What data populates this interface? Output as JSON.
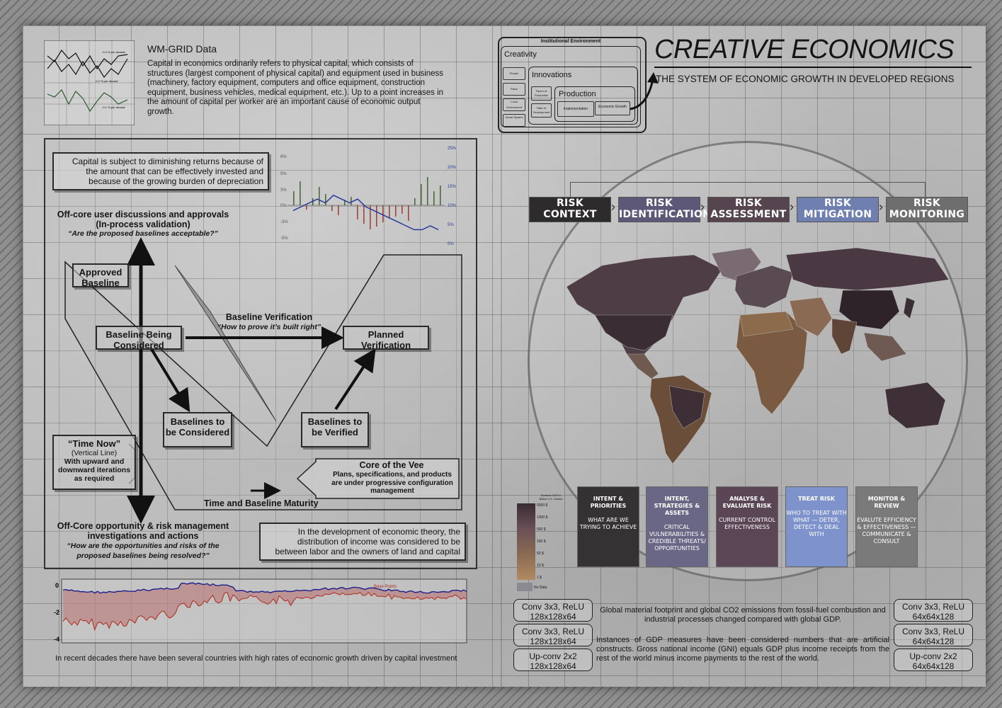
{
  "left": {
    "header": {
      "title": "WM-GRID Data",
      "body": "Capital in economics ordinarily refers to physical capital, which consists of structures (largest component of physical capital) and equipment used in business (machinery, factory equipment, computers and office equipment, construction equipment, business vehicles, medical equipment, etc.). Up to a point increases in the amount of capital per worker are an important cause of economic output growth.",
      "mini_chart_labels": [
        "-0.4 % per decade",
        "-0.2 % per decade",
        "-0.1 % per decade"
      ]
    },
    "diminishing_note": "Capital is subject to diminishing returns because of the amount that can be effectively invested and because of the growing burden of depreciation",
    "offcore_top": {
      "title": "Off-core user discussions and approvals (In-process validation)",
      "question": "“Are the proposed baselines acceptable?”"
    },
    "boxes": {
      "approved_baseline": "Approved Baseline",
      "baseline_considered": "Baseline Being Considered",
      "planned_verification": "Planned Verification",
      "baselines_considered": "Baselines to be Considered",
      "baselines_verified": "Baselines to be Verified"
    },
    "baseline_verification": {
      "title": "Baseline Verification",
      "question": "“How to prove it’s built right”"
    },
    "time_now": {
      "title": "“Time Now”",
      "sub": "(Vertical Line)",
      "body": "With upward and downward iterations as required"
    },
    "core_vee": {
      "title": "Core of the Vee",
      "body": "Plans, specifications, and products are under progressive configuration management"
    },
    "time_maturity": "Time and Baseline Maturity",
    "offcore_bottom": {
      "title": "Off-Core opportunity & risk management investigations and actions",
      "question": "“How are the opportunities and risks of the proposed baselines being resolved?”"
    },
    "income_note": "In the development of economic theory, the distribution of income was considered to be between labor and the owners of land and capital",
    "bottom_caption": "In recent decades there have been several countries with high rates of economic growth driven by capital investment",
    "bottom_chart_label": "Base Points"
  },
  "right": {
    "title": "CREATIVE ECONOMICS",
    "subtitle": "THE SYSTEM OF ECONOMIC GROWTH IN DEVELOPED REGIONS",
    "institutional": {
      "title": "Institutional Environment",
      "creativity": "Creativity",
      "innovations": "Innovations",
      "production": "Production",
      "creativity_items": [
        "People",
        "Place",
        "Local Government",
        "Social System"
      ],
      "factor_items": [
        "Factor of Production",
        "Rate of Development"
      ],
      "implementation": "Implementation",
      "economic_growth": "Economic Growth"
    },
    "risk_steps": [
      {
        "label": "RISK CONTEXT",
        "color": "#2e2b2c"
      },
      {
        "label": "RISK IDENTIFICATION",
        "color": "#5e5878"
      },
      {
        "label": "RISK ASSESSMENT",
        "color": "#56444f"
      },
      {
        "label": "RISK MITIGATION",
        "color": "#6f7fb0"
      },
      {
        "label": "RISK MONITORING",
        "color": "#6e6e6e"
      }
    ],
    "risk_columns": [
      {
        "head": "INTENT & PRIORITIES",
        "sub": "WHAT ARE WE TRYING TO ACHIEVE",
        "color": "#353233"
      },
      {
        "head": "INTENT, STRATEGIES & ASSETS",
        "sub": "CRITICAL VULNERABILITIES & CREDIBLE THREATS/ OPPORTUNITIES",
        "color": "#6a6686"
      },
      {
        "head": "ANALYSE & EVALUATE RISK",
        "sub": "CURRENT CONTROL EFFECTIVENESS",
        "color": "#5a4654"
      },
      {
        "head": "TREAT RISK",
        "sub": "WHO TO TREAT WITH WHAT — DETER, DETECT & DEAL WITH",
        "color": "#7e93cc"
      },
      {
        "head": "MONITOR & REVIEW",
        "sub": "EVALUTE EFFICIENCY & EFFECTIVENESS — COMMUNICATE & CONSULT",
        "color": "#7a7a7a"
      }
    ],
    "legend": {
      "title": "Nominal GDP in Billion U.S. Dollars",
      "ticks": [
        "5000 $",
        "1000 $",
        "500 $",
        "100 $",
        "50 $",
        "10 $",
        "1 $"
      ],
      "no_data": "No Data"
    },
    "pills_left": [
      "Conv 3x3, ReLU 128x128x64",
      "Conv 3x3, ReLU 128x128x64",
      "Up-conv 2x2 128x128x64"
    ],
    "pills_right": [
      "Conv 3x3, ReLU 64x64x128",
      "Conv 3x3, ReLU 64x64x128",
      "Up-conv 2x2 64x64x128"
    ],
    "paragraph1": "Global material footprint and global CO2 emissions from fossil-fuel combustion and industrial processes changed compared with global GDP.",
    "paragraph2": "Instances of GDP measures have been considered numbers that are artificial constructs. Gross national income (GNI) equals GDP plus income receipts from the rest of the world minus income payments to the rest of the world."
  },
  "chart_data": [
    {
      "type": "bar",
      "title": "",
      "y_left_ticks": [
        "6%",
        "5%",
        "3%",
        "0%",
        "-3%",
        "-5%"
      ],
      "y_right_ticks": [
        "25%",
        "20%",
        "15%",
        "10%",
        "5%",
        "0%"
      ],
      "series": [
        {
          "name": "line",
          "values": [
            9,
            10,
            11,
            12,
            11,
            13,
            12,
            11,
            12,
            10,
            9,
            8,
            7,
            6,
            5,
            4,
            4,
            5,
            4
          ]
        }
      ]
    },
    {
      "type": "area",
      "title": "Base Points",
      "y_ticks": [
        "0",
        "-2",
        "-4"
      ],
      "ylim": [
        -4,
        0
      ]
    }
  ]
}
